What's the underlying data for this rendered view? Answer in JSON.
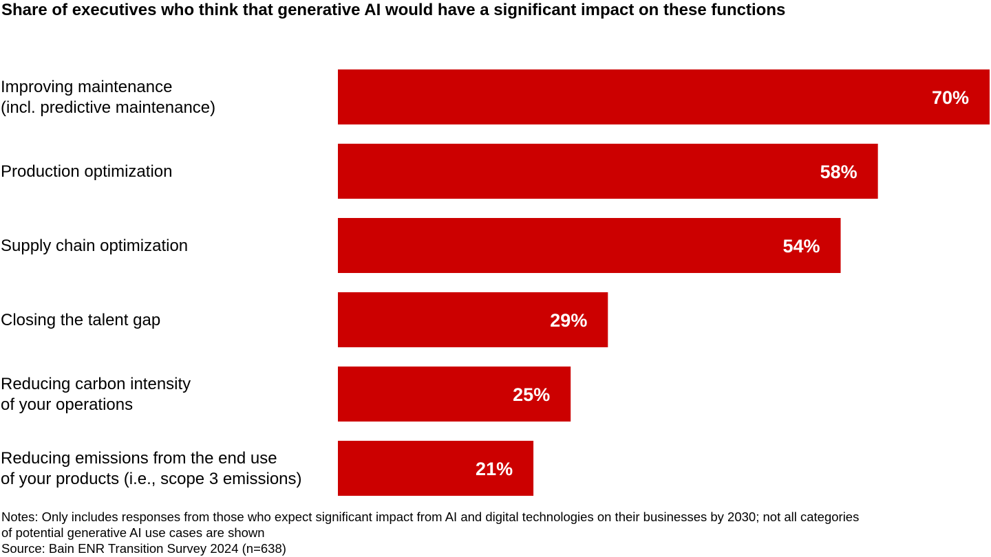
{
  "chart_data": {
    "type": "bar",
    "orientation": "horizontal",
    "title": "Share of executives who think that generative AI would have a significant impact on these functions",
    "categories": [
      [
        "Improving maintenance",
        "(incl. predictive maintenance)"
      ],
      [
        "Production optimization"
      ],
      [
        "Supply chain optimization"
      ],
      [
        "Closing the talent gap"
      ],
      [
        "Reducing carbon intensity",
        "of your operations"
      ],
      [
        "Reducing emissions from the end use",
        "of your products (i.e., scope 3 emissions)"
      ]
    ],
    "values": [
      70,
      58,
      54,
      29,
      25,
      21
    ],
    "value_labels": [
      "70%",
      "58%",
      "54%",
      "29%",
      "25%",
      "21%"
    ],
    "bar_color": "#cc0000",
    "value_label_color": "#ffffff",
    "xlim": [
      0,
      70
    ],
    "grid": false,
    "legend": "none"
  },
  "notes": [
    "Notes: Only includes responses from those who expect significant impact from AI and digital technologies on their businesses by 2030; not all categories",
    "of potential generative AI use cases are shown",
    "Source: Bain ENR Transition Survey 2024 (n=638)"
  ]
}
